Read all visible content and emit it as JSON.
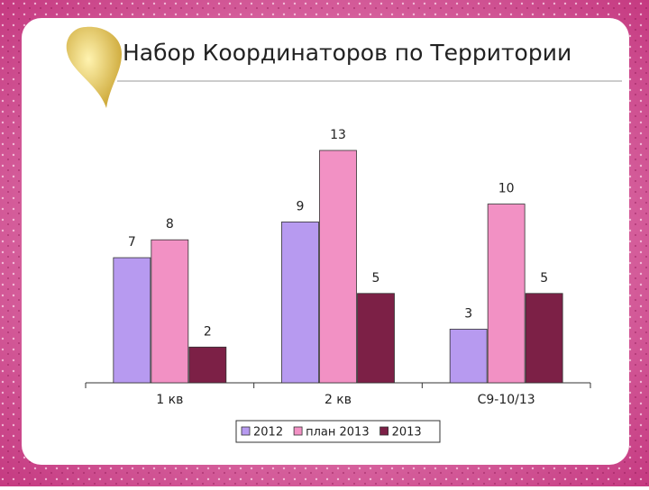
{
  "chart_data": {
    "type": "bar",
    "title": "Набор Координаторов по Территории",
    "categories": [
      "1 кв",
      "2 кв",
      "С9-10/13"
    ],
    "series": [
      {
        "name": "2012",
        "color": "#b79af0",
        "values": [
          7,
          9,
          3
        ]
      },
      {
        "name": "план 2013",
        "color": "#f291c4",
        "values": [
          8,
          13,
          10
        ]
      },
      {
        "name": "2013",
        "color": "#7c2046",
        "values": [
          2,
          5,
          5
        ]
      }
    ],
    "legend": "bottom"
  }
}
